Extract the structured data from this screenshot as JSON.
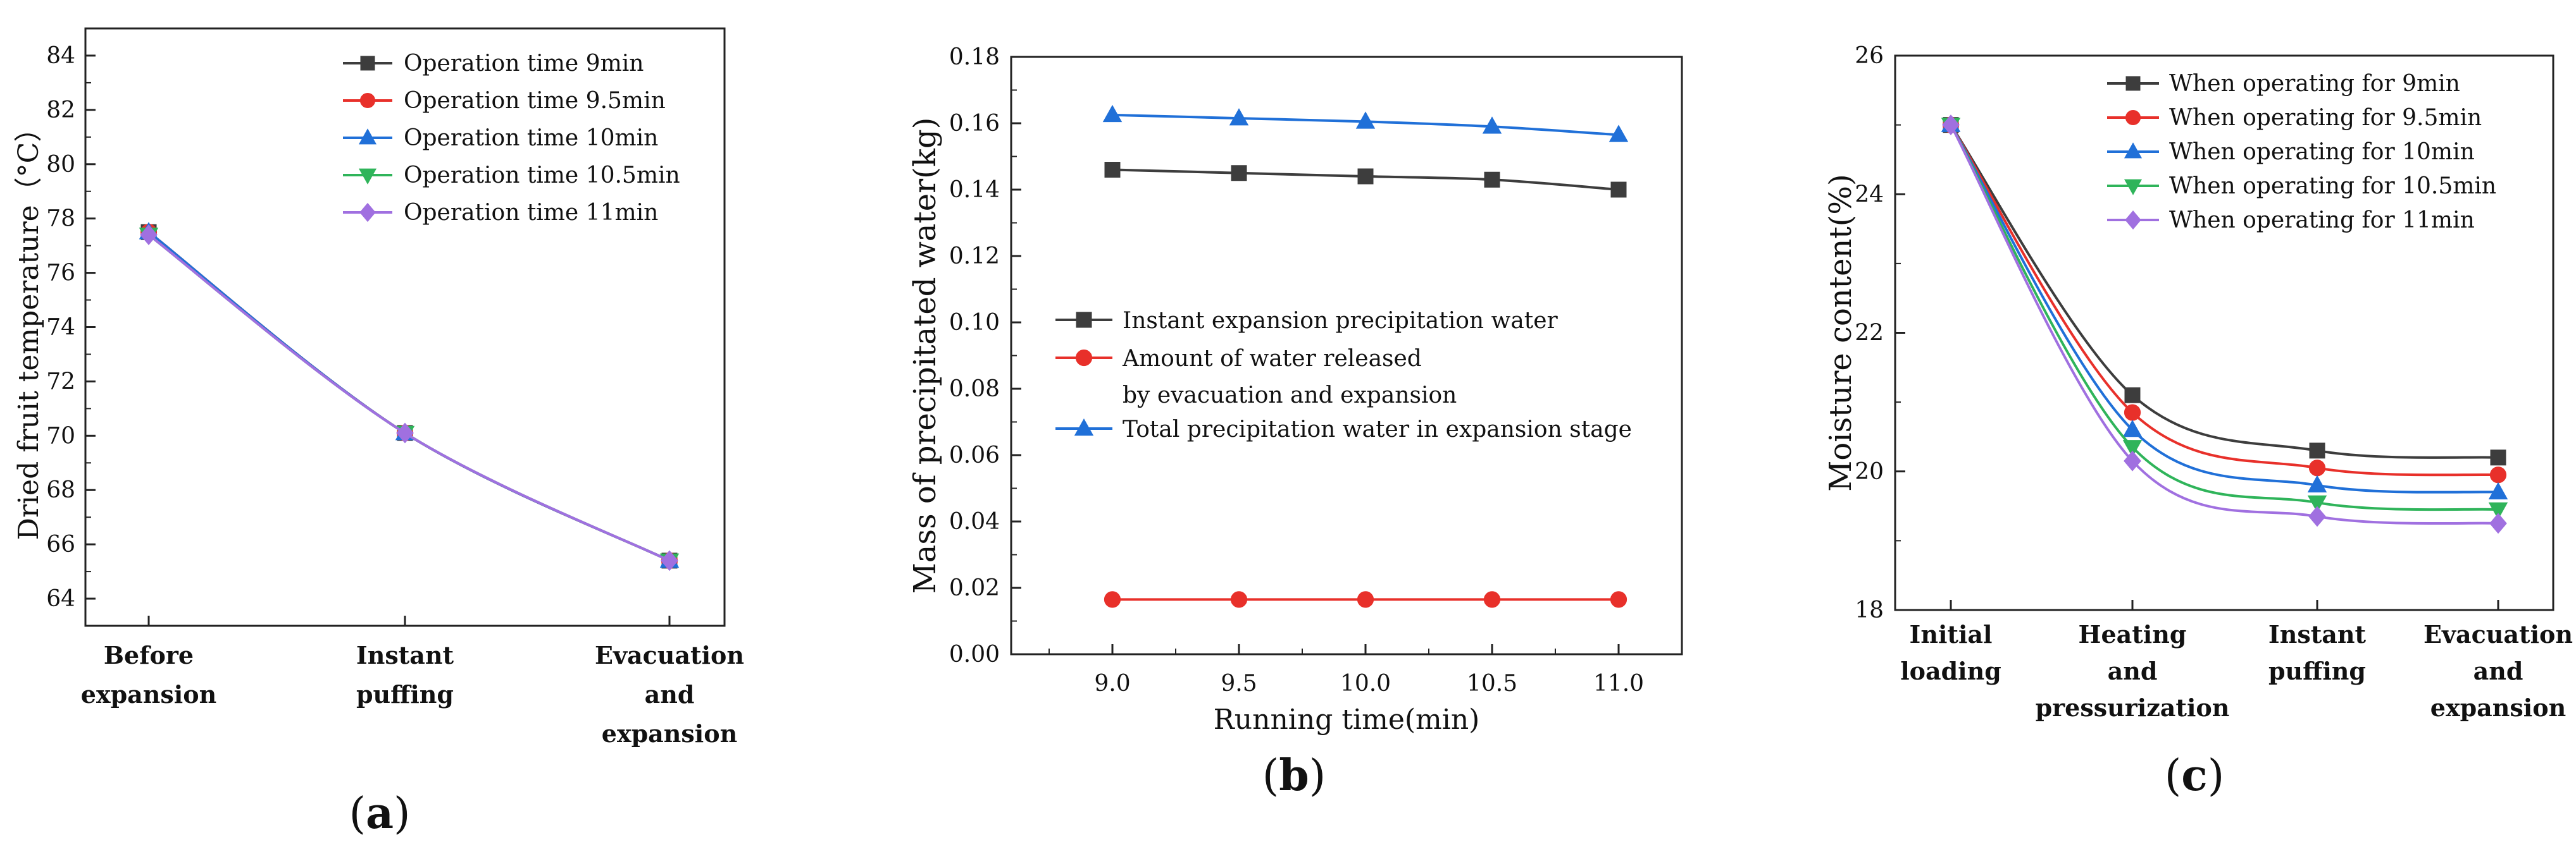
{
  "chart_data": [
    {
      "type": "line",
      "panel_label": "a",
      "ylabel": "Dried fruit temperature（°C）",
      "xlabel": "",
      "ylim": [
        63,
        85
      ],
      "yticks": [
        64,
        66,
        68,
        70,
        72,
        74,
        76,
        78,
        80,
        82,
        84
      ],
      "categories": [
        [
          "Before",
          "expansion"
        ],
        [
          "Instant",
          "puffing"
        ],
        [
          "Evacuation",
          "and",
          "expansion"
        ]
      ],
      "legend_position": "top-right",
      "series": [
        {
          "name": "Operation time 9min",
          "color": "#3d3d3d",
          "marker": "square",
          "values": [
            77.5,
            70.1,
            65.4
          ]
        },
        {
          "name": "Operation time 9.5min",
          "color": "#e8302a",
          "marker": "circle",
          "values": [
            77.5,
            70.1,
            65.4
          ]
        },
        {
          "name": "Operation time 10min",
          "color": "#2070d8",
          "marker": "triangle-up",
          "values": [
            77.5,
            70.1,
            65.4
          ]
        },
        {
          "name": "Operation time 10.5min",
          "color": "#2fb45a",
          "marker": "triangle-down",
          "values": [
            77.4,
            70.1,
            65.4
          ]
        },
        {
          "name": "Operation time 11min",
          "color": "#a070e0",
          "marker": "diamond",
          "values": [
            77.4,
            70.1,
            65.4
          ]
        }
      ]
    },
    {
      "type": "line",
      "panel_label": "b",
      "ylabel": "Mass of precipitated water(kg)",
      "xlabel": "Running time(min)",
      "xlim": [
        8.6,
        11.25
      ],
      "ylim": [
        0,
        0.18
      ],
      "xticks": [
        "9.0",
        "9.5",
        "10.0",
        "10.5",
        "11.0"
      ],
      "xtick_values": [
        9.0,
        9.5,
        10.0,
        10.5,
        11.0
      ],
      "yticks": [
        "0.00",
        "0.02",
        "0.04",
        "0.06",
        "0.08",
        "0.10",
        "0.12",
        "0.14",
        "0.16",
        "0.18"
      ],
      "legend_position": "center-left",
      "x": [
        9.0,
        9.5,
        10.0,
        10.5,
        11.0
      ],
      "series": [
        {
          "name": [
            "Instant expansion precipitation water"
          ],
          "color": "#3d3d3d",
          "marker": "square",
          "values": [
            0.146,
            0.145,
            0.144,
            0.143,
            0.14
          ]
        },
        {
          "name": [
            "Amount of water released",
            "by evacuation and expansion"
          ],
          "color": "#e8302a",
          "marker": "circle",
          "values": [
            0.0165,
            0.0165,
            0.0165,
            0.0165,
            0.0165
          ]
        },
        {
          "name": [
            "Total precipitation water in expansion stage"
          ],
          "color": "#2070d8",
          "marker": "triangle-up",
          "values": [
            0.1625,
            0.1615,
            0.1605,
            0.159,
            0.1565
          ]
        }
      ]
    },
    {
      "type": "line",
      "panel_label": "c",
      "ylabel": "Moisture content(%)",
      "xlabel": "",
      "ylim": [
        18,
        26
      ],
      "yticks": [
        18,
        20,
        22,
        24,
        26
      ],
      "categories": [
        [
          "Initial",
          "loading"
        ],
        [
          "Heating",
          "and",
          "pressurization"
        ],
        [
          "Instant",
          "puffing"
        ],
        [
          "Evacuation",
          "and",
          "expansion"
        ]
      ],
      "legend_position": "top-right",
      "series": [
        {
          "name": "When operating for 9min",
          "color": "#3d3d3d",
          "marker": "square",
          "values": [
            25.0,
            21.1,
            20.3,
            20.2
          ]
        },
        {
          "name": "When operating for 9.5min",
          "color": "#e8302a",
          "marker": "circle",
          "values": [
            25.0,
            20.85,
            20.05,
            19.95
          ]
        },
        {
          "name": "When operating for 10min",
          "color": "#2070d8",
          "marker": "triangle-up",
          "values": [
            25.0,
            20.6,
            19.8,
            19.7
          ]
        },
        {
          "name": "When operating for 10.5min",
          "color": "#2fb45a",
          "marker": "triangle-down",
          "values": [
            25.0,
            20.35,
            19.55,
            19.45
          ]
        },
        {
          "name": "When operating for 11min",
          "color": "#a070e0",
          "marker": "diamond",
          "values": [
            25.0,
            20.15,
            19.35,
            19.25
          ]
        }
      ]
    }
  ]
}
